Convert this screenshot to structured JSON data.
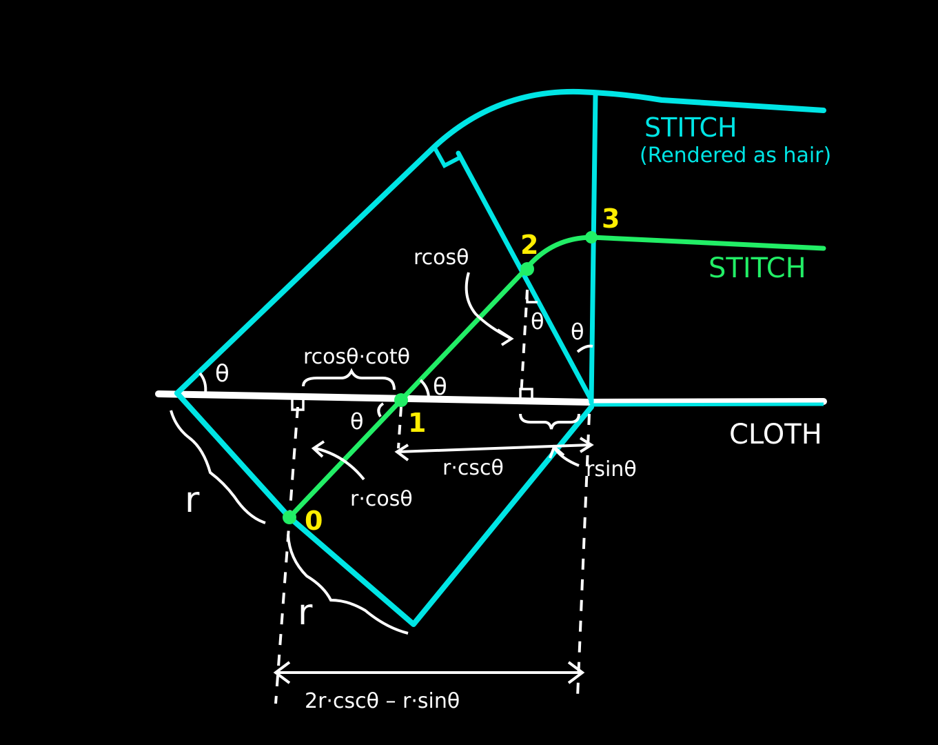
{
  "colors": {
    "background": "#000000",
    "stitch_hair": "#00e5e5",
    "stitch": "#22ee66",
    "cloth": "#ffffff",
    "point_labels": "#ffee00",
    "annotations": "#ffffff"
  },
  "labels": {
    "stitch_hair_title": "STITCH",
    "stitch_hair_subtitle": "(Rendered as hair)",
    "stitch_title": "STITCH",
    "cloth_title": "CLOTH"
  },
  "points": [
    "0",
    "1",
    "2",
    "3"
  ],
  "angle_symbol": "θ",
  "annotations": {
    "r_left": "r",
    "r_bottom": "r",
    "r_cos_top": "rcosθ",
    "r_cos_cot": "rcosθ·cotθ",
    "r_cos_lower": "r·cosθ",
    "r_csc": "r·cscθ",
    "r_sin": "rsinθ",
    "total_width": "2r·cscθ – r·sinθ"
  }
}
